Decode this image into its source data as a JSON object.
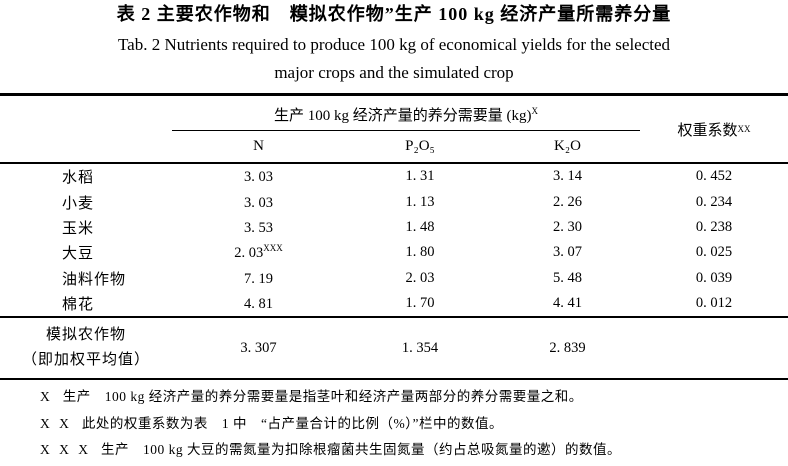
{
  "title": {
    "zh": "表 2 主要农作物和　糢拟农作物”生产 100 kg 经济产量所需养分量",
    "en_line1": "Tab. 2  Nutrients required to produce 100 kg of economical yields for the selected",
    "en_line2": "major crops and the simulated crop"
  },
  "table": {
    "span_header": "生产 100 kg 经济产量的养分需要量 (kg)",
    "span_header_sup": "X",
    "weight_header": "权重系数",
    "weight_header_sup": "XX",
    "col_n": "N",
    "col_p": "P₂O₅",
    "col_k": "K₂O",
    "rows": [
      {
        "crop": "水稻",
        "n": "3. 03",
        "n_sup": "",
        "p": "1. 31",
        "k": "3. 14",
        "w": "0. 452"
      },
      {
        "crop": "小麦",
        "n": "3. 03",
        "n_sup": "",
        "p": "1. 13",
        "k": "2. 26",
        "w": "0. 234"
      },
      {
        "crop": "玉米",
        "n": "3. 53",
        "n_sup": "",
        "p": "1. 48",
        "k": "2. 30",
        "w": "0. 238"
      },
      {
        "crop": "大豆",
        "n": "2. 03",
        "n_sup": "XXX",
        "p": "1. 80",
        "k": "3. 07",
        "w": "0. 025"
      },
      {
        "crop": "油料作物",
        "n": "7. 19",
        "n_sup": "",
        "p": "2. 03",
        "k": "5. 48",
        "w": "0. 039"
      },
      {
        "crop": "棉花",
        "n": "4. 81",
        "n_sup": "",
        "p": "1. 70",
        "k": "4. 41",
        "w": "0. 012"
      }
    ],
    "summary_row": {
      "crop_line1": "模拟农作物",
      "crop_line2": "（即加权平均值）",
      "n": "3. 307",
      "p": "1. 354",
      "k": "2. 839",
      "w": ""
    }
  },
  "footnotes": [
    {
      "marker": "X",
      "text": "生产　100 kg 经济产量的养分需要量是指茎叶和经济产量两部分的养分需要量之和。"
    },
    {
      "marker": "X X",
      "text": "此处的权重系数为表　1 中　“占产量合计的比例（%）”栏中的数值。"
    },
    {
      "marker": "X X X",
      "text": "生产　100 kg 大豆的需氮量为扣除根瘤菌共生固氮量（约占总吸氮量的遬）的数值。"
    }
  ]
}
